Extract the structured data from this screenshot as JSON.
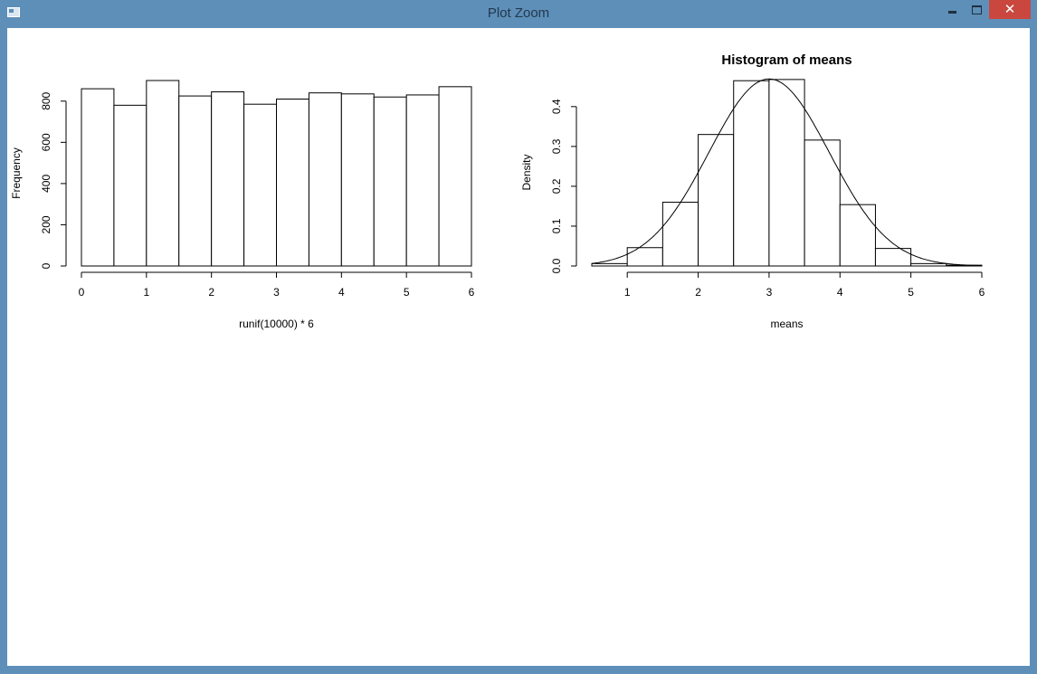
{
  "window": {
    "title": "Plot Zoom"
  },
  "controls": {
    "close_glyph": "✕",
    "minimize_icon": "minimize-icon",
    "maximize_icon": "maximize-icon",
    "close_icon": "close-icon"
  },
  "chart_data": [
    {
      "type": "bar",
      "title": "",
      "xlabel": "runif(10000) * 6",
      "ylabel": "Frequency",
      "bin_edges": [
        0,
        0.5,
        1,
        1.5,
        2,
        2.5,
        3,
        3.5,
        4,
        4.5,
        5,
        5.5,
        6
      ],
      "values": [
        860,
        780,
        900,
        825,
        845,
        785,
        810,
        840,
        835,
        820,
        830,
        870
      ],
      "xlim": [
        0,
        6
      ],
      "ylim": [
        0,
        900
      ],
      "xticks": [
        "0",
        "1",
        "2",
        "3",
        "4",
        "5",
        "6"
      ],
      "yticks": [
        "0",
        "200",
        "400",
        "600",
        "800"
      ]
    },
    {
      "type": "bar",
      "title": "Histogram of means",
      "xlabel": "means",
      "ylabel": "Density",
      "bin_edges": [
        0.5,
        1,
        1.5,
        2,
        2.5,
        3,
        3.5,
        4,
        4.5,
        5,
        5.5,
        6
      ],
      "values": [
        0.006,
        0.046,
        0.16,
        0.33,
        0.465,
        0.468,
        0.316,
        0.154,
        0.044,
        0.006,
        0.002
      ],
      "overlay": {
        "type": "line",
        "description": "normal density curve",
        "mean": 3,
        "sd": 0.85
      },
      "xlim": [
        0.5,
        6
      ],
      "ylim": [
        0,
        0.47
      ],
      "xticks": [
        "1",
        "2",
        "3",
        "4",
        "5",
        "6"
      ],
      "yticks": [
        "0.0",
        "0.1",
        "0.2",
        "0.3",
        "0.4"
      ]
    }
  ]
}
